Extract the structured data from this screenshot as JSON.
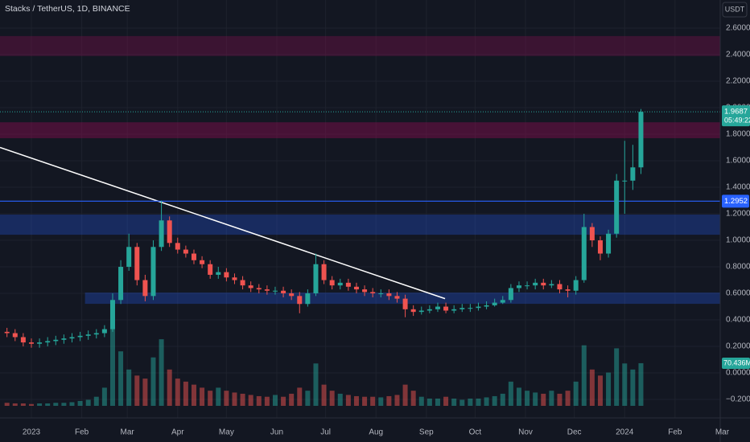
{
  "chart_data": {
    "type": "candlestick",
    "title": "Stacks / TetherUS, 1D, BINANCE",
    "currency": "USDT",
    "up_color": "#26a69a",
    "down_color": "#ef5350",
    "grid": true,
    "xlim": [
      -19.3,
      442.1
    ],
    "ylim": [
      -0.339,
      2.812
    ],
    "volume_ylim": [
      0,
      150
    ],
    "xticks": [
      {
        "value": 0,
        "label": "2023"
      },
      {
        "value": 31,
        "label": "Feb"
      },
      {
        "value": 59,
        "label": "Mar"
      },
      {
        "value": 90,
        "label": "Apr"
      },
      {
        "value": 120,
        "label": "May"
      },
      {
        "value": 151,
        "label": "Jun"
      },
      {
        "value": 181,
        "label": "Jul"
      },
      {
        "value": 212,
        "label": "Aug"
      },
      {
        "value": 243,
        "label": "Sep"
      },
      {
        "value": 273,
        "label": "Oct"
      },
      {
        "value": 304,
        "label": "Nov"
      },
      {
        "value": 334,
        "label": "Dec"
      },
      {
        "value": 365,
        "label": "2024"
      },
      {
        "value": 396,
        "label": "Feb"
      },
      {
        "value": 425,
        "label": "Mar"
      }
    ],
    "yticks": [
      {
        "value": 2.6,
        "label": "2.6000"
      },
      {
        "value": 2.4,
        "label": "2.4000"
      },
      {
        "value": 2.2,
        "label": "2.2000"
      },
      {
        "value": 2.0,
        "label": "2.0000"
      },
      {
        "value": 1.8,
        "label": "1.8000"
      },
      {
        "value": 1.6,
        "label": "1.6000"
      },
      {
        "value": 1.4,
        "label": "1.4000"
      },
      {
        "value": 1.2,
        "label": "1.2000"
      },
      {
        "value": 1.0,
        "label": "1.0000"
      },
      {
        "value": 0.8,
        "label": "0.8000"
      },
      {
        "value": 0.6,
        "label": "0.6000"
      },
      {
        "value": 0.4,
        "label": "0.4000"
      },
      {
        "value": 0.2,
        "label": "0.2000"
      },
      {
        "value": 0,
        "label": "0.0000"
      },
      {
        "value": -0.2,
        "label": "−0.2000"
      }
    ],
    "x": [
      -15,
      -10,
      -5,
      0,
      5,
      10,
      15,
      20,
      25,
      30,
      35,
      40,
      45,
      50,
      55,
      60,
      65,
      70,
      75,
      80,
      85,
      90,
      95,
      100,
      105,
      110,
      115,
      120,
      125,
      130,
      135,
      140,
      145,
      150,
      155,
      160,
      165,
      170,
      175,
      180,
      185,
      190,
      195,
      200,
      205,
      210,
      215,
      220,
      225,
      230,
      235,
      240,
      245,
      250,
      255,
      260,
      265,
      270,
      275,
      280,
      285,
      290,
      295,
      300,
      305,
      310,
      315,
      320,
      325,
      330,
      335,
      340,
      345,
      350,
      355,
      360,
      365,
      370,
      375
    ],
    "open": [
      0.31,
      0.3,
      0.27,
      0.23,
      0.22,
      0.23,
      0.24,
      0.25,
      0.26,
      0.27,
      0.28,
      0.29,
      0.3,
      0.33,
      0.55,
      0.8,
      0.95,
      0.7,
      0.58,
      0.95,
      1.15,
      0.98,
      0.93,
      0.9,
      0.85,
      0.82,
      0.74,
      0.76,
      0.72,
      0.7,
      0.66,
      0.64,
      0.63,
      0.62,
      0.62,
      0.6,
      0.58,
      0.52,
      0.6,
      0.82,
      0.7,
      0.66,
      0.68,
      0.65,
      0.63,
      0.61,
      0.6,
      0.6,
      0.58,
      0.56,
      0.48,
      0.46,
      0.47,
      0.48,
      0.5,
      0.47,
      0.48,
      0.49,
      0.49,
      0.5,
      0.51,
      0.53,
      0.55,
      0.64,
      0.66,
      0.66,
      0.68,
      0.66,
      0.67,
      0.63,
      0.62,
      0.7,
      1.1,
      1.0,
      0.9,
      1.05,
      1.45,
      1.45,
      1.55
    ],
    "high": [
      0.34,
      0.33,
      0.3,
      0.26,
      0.26,
      0.27,
      0.28,
      0.29,
      0.3,
      0.31,
      0.32,
      0.33,
      0.36,
      0.6,
      0.85,
      1.05,
      0.98,
      0.74,
      1.0,
      1.3,
      1.18,
      1.02,
      0.96,
      0.93,
      0.88,
      0.85,
      0.8,
      0.79,
      0.75,
      0.73,
      0.69,
      0.67,
      0.66,
      0.65,
      0.65,
      0.63,
      0.61,
      0.63,
      0.9,
      0.85,
      0.73,
      0.71,
      0.71,
      0.68,
      0.66,
      0.64,
      0.63,
      0.63,
      0.61,
      0.59,
      0.51,
      0.5,
      0.51,
      0.53,
      0.53,
      0.51,
      0.52,
      0.52,
      0.53,
      0.54,
      0.56,
      0.58,
      0.67,
      0.69,
      0.69,
      0.71,
      0.71,
      0.7,
      0.7,
      0.66,
      0.73,
      1.2,
      1.13,
      1.03,
      1.08,
      1.5,
      1.75,
      1.72,
      1.99
    ],
    "low": [
      0.27,
      0.24,
      0.2,
      0.19,
      0.19,
      0.2,
      0.21,
      0.22,
      0.23,
      0.24,
      0.25,
      0.26,
      0.27,
      0.31,
      0.52,
      0.77,
      0.66,
      0.54,
      0.55,
      0.92,
      0.95,
      0.9,
      0.87,
      0.82,
      0.79,
      0.71,
      0.71,
      0.69,
      0.67,
      0.63,
      0.61,
      0.6,
      0.59,
      0.59,
      0.57,
      0.55,
      0.45,
      0.5,
      0.58,
      0.67,
      0.63,
      0.63,
      0.62,
      0.6,
      0.58,
      0.57,
      0.57,
      0.55,
      0.53,
      0.42,
      0.43,
      0.44,
      0.45,
      0.46,
      0.45,
      0.45,
      0.46,
      0.46,
      0.47,
      0.48,
      0.5,
      0.52,
      0.53,
      0.61,
      0.63,
      0.63,
      0.63,
      0.64,
      0.6,
      0.57,
      0.59,
      0.68,
      0.95,
      0.85,
      0.87,
      1.02,
      1.2,
      1.38,
      1.5
    ],
    "close": [
      0.3,
      0.27,
      0.23,
      0.22,
      0.23,
      0.24,
      0.25,
      0.26,
      0.27,
      0.28,
      0.29,
      0.3,
      0.33,
      0.55,
      0.8,
      0.95,
      0.7,
      0.58,
      0.95,
      1.15,
      0.98,
      0.93,
      0.9,
      0.85,
      0.82,
      0.74,
      0.76,
      0.72,
      0.7,
      0.66,
      0.64,
      0.63,
      0.62,
      0.62,
      0.6,
      0.58,
      0.52,
      0.6,
      0.82,
      0.7,
      0.66,
      0.68,
      0.65,
      0.63,
      0.61,
      0.6,
      0.6,
      0.58,
      0.56,
      0.48,
      0.46,
      0.47,
      0.48,
      0.5,
      0.47,
      0.48,
      0.49,
      0.49,
      0.5,
      0.51,
      0.53,
      0.55,
      0.64,
      0.66,
      0.66,
      0.68,
      0.66,
      0.67,
      0.63,
      0.62,
      0.7,
      1.1,
      1.0,
      0.9,
      1.05,
      1.45,
      1.45,
      1.55,
      1.9687
    ],
    "volume": [
      5,
      4,
      4,
      3,
      4,
      4,
      5,
      5,
      6,
      8,
      10,
      15,
      30,
      140,
      90,
      60,
      50,
      45,
      80,
      110,
      60,
      45,
      40,
      35,
      30,
      25,
      30,
      25,
      22,
      20,
      18,
      16,
      15,
      18,
      15,
      20,
      30,
      25,
      70,
      35,
      25,
      20,
      18,
      16,
      15,
      15,
      14,
      16,
      18,
      35,
      25,
      15,
      12,
      12,
      15,
      12,
      10,
      12,
      12,
      14,
      16,
      20,
      40,
      30,
      25,
      22,
      20,
      25,
      20,
      25,
      40,
      100,
      60,
      50,
      55,
      95,
      70,
      60,
      70.436
    ],
    "zones": [
      {
        "from": 2.39,
        "to": 2.54,
        "color": "rgba(136,14,79,0.35)"
      },
      {
        "from": 1.77,
        "to": 1.89,
        "color": "rgba(136,14,79,0.45)"
      },
      {
        "from": 1.042,
        "to": 1.194,
        "color": "rgba(41,98,255,0.28)"
      },
      {
        "from": 0.521,
        "to": 0.606,
        "x_from": 33,
        "color": "rgba(41,98,255,0.28)"
      }
    ],
    "trendline": {
      "x": [
        -19.3,
        254.5
      ],
      "y": [
        1.7,
        0.56
      ],
      "color": "#ffffff"
    },
    "price_line": {
      "value": 1.2952,
      "label": "1.2952",
      "color": "#2962ff"
    },
    "last_price": {
      "value": 1.9687,
      "label": "1.9687",
      "countdown": "05:49:22"
    },
    "volume_label": {
      "value": 70.436,
      "label": "70.436M"
    }
  }
}
